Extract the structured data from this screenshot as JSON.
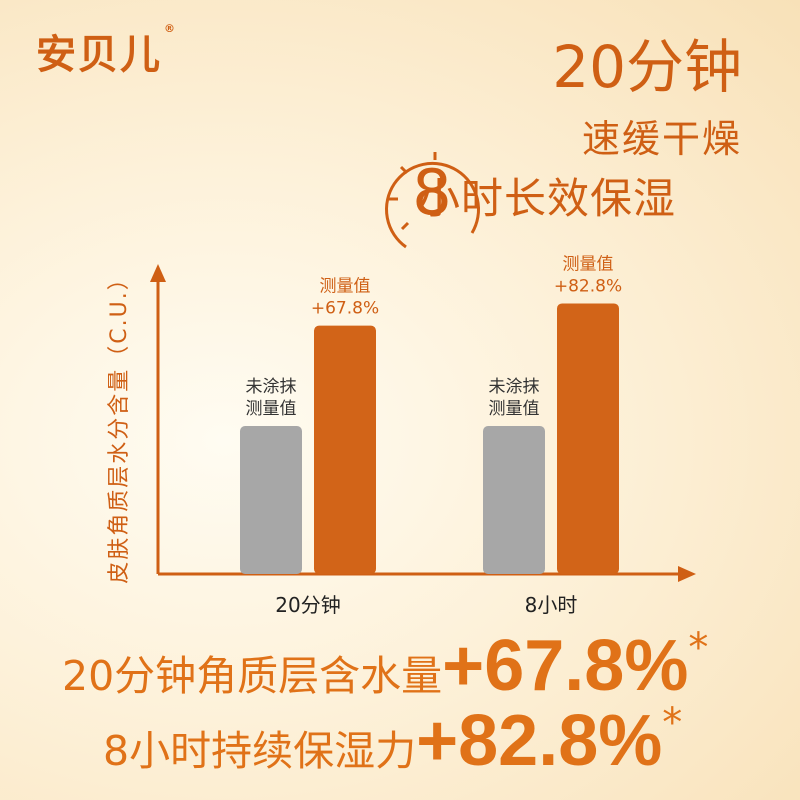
{
  "logo": {
    "name": "安贝儿",
    "reg": "®"
  },
  "headline": {
    "line1": "20分钟",
    "line2": "速缓干燥",
    "line3_number": "8",
    "line3_text": "小时长效保湿"
  },
  "colors": {
    "accent": "#cf5f14",
    "bar_orange": "#d26418",
    "bar_gray": "#a7a7a7",
    "axis": "#cf5f14"
  },
  "chart_data": {
    "type": "bar",
    "ylabel": "皮肤角质层水分含量（C.U.）",
    "xlabel": "",
    "categories": [
      "20分钟",
      "8小时"
    ],
    "series": [
      {
        "name": "未涂抹测量值",
        "values": [
          100,
          100
        ],
        "labels": [
          "未涂抹\n测量值",
          "未涂抹\n测量值"
        ]
      },
      {
        "name": "测量值",
        "values": [
          167.8,
          182.8
        ],
        "labels": [
          "测量值\n+67.8%",
          "测量值\n+82.8%"
        ]
      }
    ],
    "ylim": [
      0,
      200
    ],
    "grid": false,
    "legend": "none"
  },
  "claims": [
    {
      "text": "20分钟角质层含水量",
      "value": "+67.8%",
      "star": "*"
    },
    {
      "text": "8小时持续保湿力",
      "value": "+82.8%",
      "star": "*"
    }
  ]
}
